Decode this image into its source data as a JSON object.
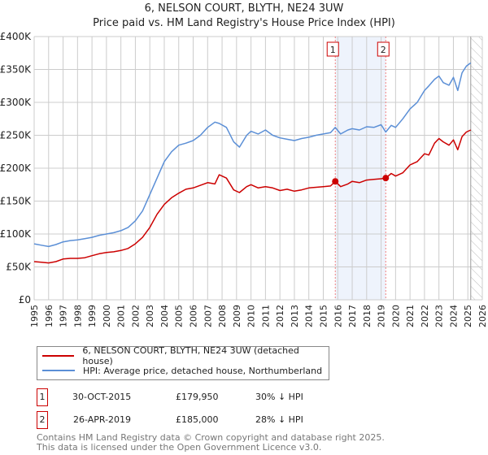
{
  "chart_data": {
    "type": "line",
    "title": "6, NELSON COURT, BLYTH, NE24 3UW",
    "subtitle": "Price paid vs. HM Land Registry's House Price Index (HPI)",
    "xlim": [
      1995,
      2026
    ],
    "ylim": [
      0,
      400000
    ],
    "x_ticks": [
      "1995",
      "1996",
      "1997",
      "1998",
      "1999",
      "2000",
      "2001",
      "2002",
      "2003",
      "2004",
      "2005",
      "2006",
      "2007",
      "2008",
      "2009",
      "2010",
      "2011",
      "2012",
      "2013",
      "2014",
      "2015",
      "2016",
      "2017",
      "2018",
      "2019",
      "2020",
      "2021",
      "2022",
      "2023",
      "2024",
      "2025",
      "2026"
    ],
    "y_ticks": [
      {
        "v": 0,
        "label": "£0"
      },
      {
        "v": 50000,
        "label": "£50K"
      },
      {
        "v": 100000,
        "label": "£100K"
      },
      {
        "v": 150000,
        "label": "£150K"
      },
      {
        "v": 200000,
        "label": "£200K"
      },
      {
        "v": 250000,
        "label": "£250K"
      },
      {
        "v": 300000,
        "label": "£300K"
      },
      {
        "v": 350000,
        "label": "£350K"
      },
      {
        "v": 400000,
        "label": "£400K"
      }
    ],
    "grid": true,
    "forecast_hatch_from": 2025.2,
    "series": [
      {
        "name": "6, NELSON COURT, BLYTH, NE24 3UW (detached house)",
        "color": "#cc0000",
        "x": [
          1995,
          1995.5,
          1996,
          1996.5,
          1997,
          1997.5,
          1998,
          1998.5,
          1999,
          1999.5,
          2000,
          2000.5,
          2001,
          2001.5,
          2002,
          2002.5,
          2003,
          2003.5,
          2004,
          2004.5,
          2005,
          2005.5,
          2006,
          2006.5,
          2007,
          2007.5,
          2007.8,
          2008.3,
          2008.8,
          2009.2,
          2009.7,
          2010,
          2010.5,
          2011,
          2011.5,
          2012,
          2012.5,
          2013,
          2013.5,
          2014,
          2014.5,
          2015,
          2015.5,
          2015.83,
          2016.2,
          2016.7,
          2017,
          2017.5,
          2018,
          2018.5,
          2019,
          2019.32,
          2019.7,
          2020,
          2020.5,
          2021,
          2021.5,
          2022,
          2022.3,
          2022.7,
          2023,
          2023.3,
          2023.7,
          2024,
          2024.3,
          2024.6,
          2024.9,
          2025.2
        ],
        "values": [
          58000,
          57000,
          56000,
          58000,
          62000,
          63000,
          63000,
          64000,
          67000,
          70000,
          72000,
          73000,
          75000,
          78000,
          85000,
          95000,
          110000,
          130000,
          145000,
          155000,
          162000,
          168000,
          170000,
          174000,
          178000,
          176000,
          190000,
          185000,
          167000,
          163000,
          172000,
          175000,
          170000,
          172000,
          170000,
          166000,
          168000,
          165000,
          167000,
          170000,
          171000,
          172000,
          173000,
          179950,
          172000,
          176000,
          180000,
          178000,
          182000,
          183000,
          184000,
          185000,
          192000,
          188000,
          193000,
          205000,
          210000,
          222000,
          220000,
          238000,
          245000,
          240000,
          235000,
          243000,
          228000,
          248000,
          255000,
          258000
        ]
      },
      {
        "name": "HPI: Average price, detached house, Northumberland",
        "color": "#5b8fd6",
        "x": [
          1995,
          1995.5,
          1996,
          1996.5,
          1997,
          1997.5,
          1998,
          1998.5,
          1999,
          1999.5,
          2000,
          2000.5,
          2001,
          2001.5,
          2002,
          2002.5,
          2003,
          2003.5,
          2004,
          2004.5,
          2005,
          2005.5,
          2006,
          2006.5,
          2007,
          2007.5,
          2007.8,
          2008.3,
          2008.8,
          2009.2,
          2009.7,
          2010,
          2010.5,
          2011,
          2011.5,
          2012,
          2012.5,
          2013,
          2013.5,
          2014,
          2014.5,
          2015,
          2015.5,
          2015.83,
          2016.2,
          2016.7,
          2017,
          2017.5,
          2018,
          2018.5,
          2019,
          2019.32,
          2019.7,
          2020,
          2020.5,
          2021,
          2021.5,
          2022,
          2022.3,
          2022.7,
          2023,
          2023.3,
          2023.7,
          2024,
          2024.3,
          2024.6,
          2024.9,
          2025.2
        ],
        "values": [
          85000,
          83000,
          81000,
          84000,
          88000,
          90000,
          91000,
          93000,
          95000,
          98000,
          100000,
          102000,
          105000,
          110000,
          120000,
          135000,
          160000,
          185000,
          210000,
          225000,
          235000,
          238000,
          242000,
          250000,
          262000,
          270000,
          268000,
          262000,
          240000,
          232000,
          250000,
          256000,
          252000,
          258000,
          250000,
          246000,
          244000,
          242000,
          245000,
          247000,
          250000,
          252000,
          254000,
          262000,
          252000,
          258000,
          260000,
          258000,
          263000,
          262000,
          266000,
          255000,
          265000,
          262000,
          275000,
          290000,
          300000,
          318000,
          325000,
          335000,
          340000,
          330000,
          326000,
          338000,
          318000,
          345000,
          355000,
          360000
        ]
      }
    ],
    "sales": [
      {
        "id": "1",
        "x": 2015.83,
        "value": 179950
      },
      {
        "id": "2",
        "x": 2019.32,
        "value": 185000
      }
    ]
  },
  "legend": {
    "property": "6, NELSON COURT, BLYTH, NE24 3UW (detached house)",
    "hpi": "HPI: Average price, detached house, Northumberland"
  },
  "transactions": [
    {
      "id": "1",
      "date": "30-OCT-2015",
      "price": "£179,950",
      "delta": "30% ↓ HPI"
    },
    {
      "id": "2",
      "date": "26-APR-2019",
      "price": "£185,000",
      "delta": "28% ↓ HPI"
    }
  ],
  "footer": {
    "line1": "Contains HM Land Registry data © Crown copyright and database right 2025.",
    "line2": "This data is licensed under the Open Government Licence v3.0."
  }
}
